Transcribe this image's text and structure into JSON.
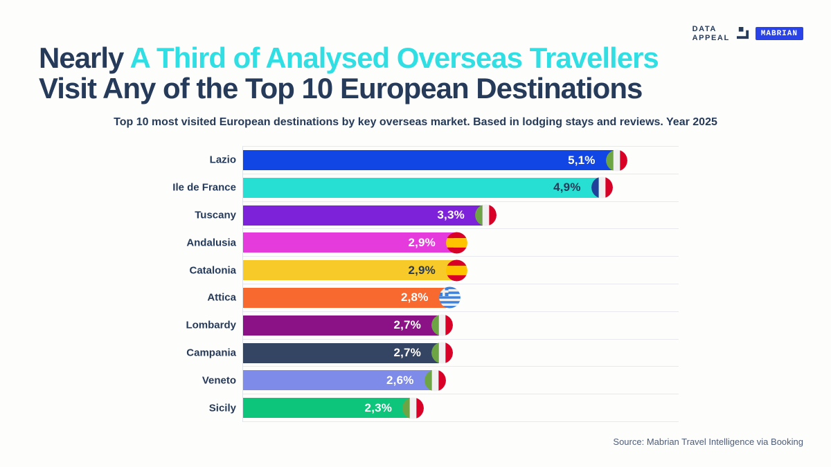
{
  "logo": {
    "brand_line1": "DATA",
    "brand_line2": "APPEAL",
    "partner": "MABRIAN"
  },
  "header": {
    "title_line1_navy": "Nearly",
    "title_line1_cyan": "A Third of Analysed Overseas Travellers",
    "title_line2": "Visit Any of the Top 10 European Destinations",
    "subtitle": "Top 10 most visited European destinations by key overseas market. Based in lodging stays and reviews. Year 2025"
  },
  "footer": {
    "source": "Source: Mabrian Travel Intelligence via Booking"
  },
  "colors": {
    "navy": "#263A59",
    "cyan_accent": "#30DFE3",
    "badge_blue": "#2A43E8",
    "gridline": "#E7E9EF",
    "flags": {
      "italy_green": "#6DA544",
      "flag_white": "#F0F0F0",
      "flag_red": "#D80027",
      "france_blue": "#21409A",
      "spain_red": "#D80027",
      "spain_yellow": "#FFC400",
      "greece_blue": "#3C82DC"
    }
  },
  "chart_data": {
    "type": "bar",
    "orientation": "horizontal",
    "title": "Top 10 most visited European destinations by key overseas market. Based in lodging stays and reviews. Year 2025",
    "categories": [
      "Lazio",
      "Ile de France",
      "Tuscany",
      "Andalusia",
      "Catalonia",
      "Attica",
      "Lombardy",
      "Campania",
      "Veneto",
      "Sicily"
    ],
    "values": [
      5.1,
      4.9,
      3.3,
      2.9,
      2.9,
      2.8,
      2.7,
      2.7,
      2.6,
      2.3
    ],
    "value_labels": [
      "5,1%",
      "4,9%",
      "3,3%",
      "2,9%",
      "2,9%",
      "2,8%",
      "2,7%",
      "2,7%",
      "2,6%",
      "2,3%"
    ],
    "bar_colors": [
      "#1145E4",
      "#27DFD2",
      "#7D22D8",
      "#E53BDD",
      "#F7C929",
      "#F8692F",
      "#8B1186",
      "#344463",
      "#7E8BE8",
      "#0DC67C"
    ],
    "value_label_colors": [
      "#FFFFFF",
      "#263A59",
      "#FFFFFF",
      "#FFFFFF",
      "#263A59",
      "#FFFFFF",
      "#FFFFFF",
      "#FFFFFF",
      "#FFFFFF",
      "#FFFFFF"
    ],
    "flags": [
      "italy",
      "france",
      "italy",
      "spain",
      "spain",
      "greece",
      "italy",
      "italy",
      "italy",
      "italy"
    ],
    "xlim": [
      0,
      6
    ],
    "x_axis": "hidden (no ticks or numeric axis labels shown)",
    "grid": "horizontal row separator lines",
    "legend_position": "none (country flag icon at end of each bar)"
  }
}
